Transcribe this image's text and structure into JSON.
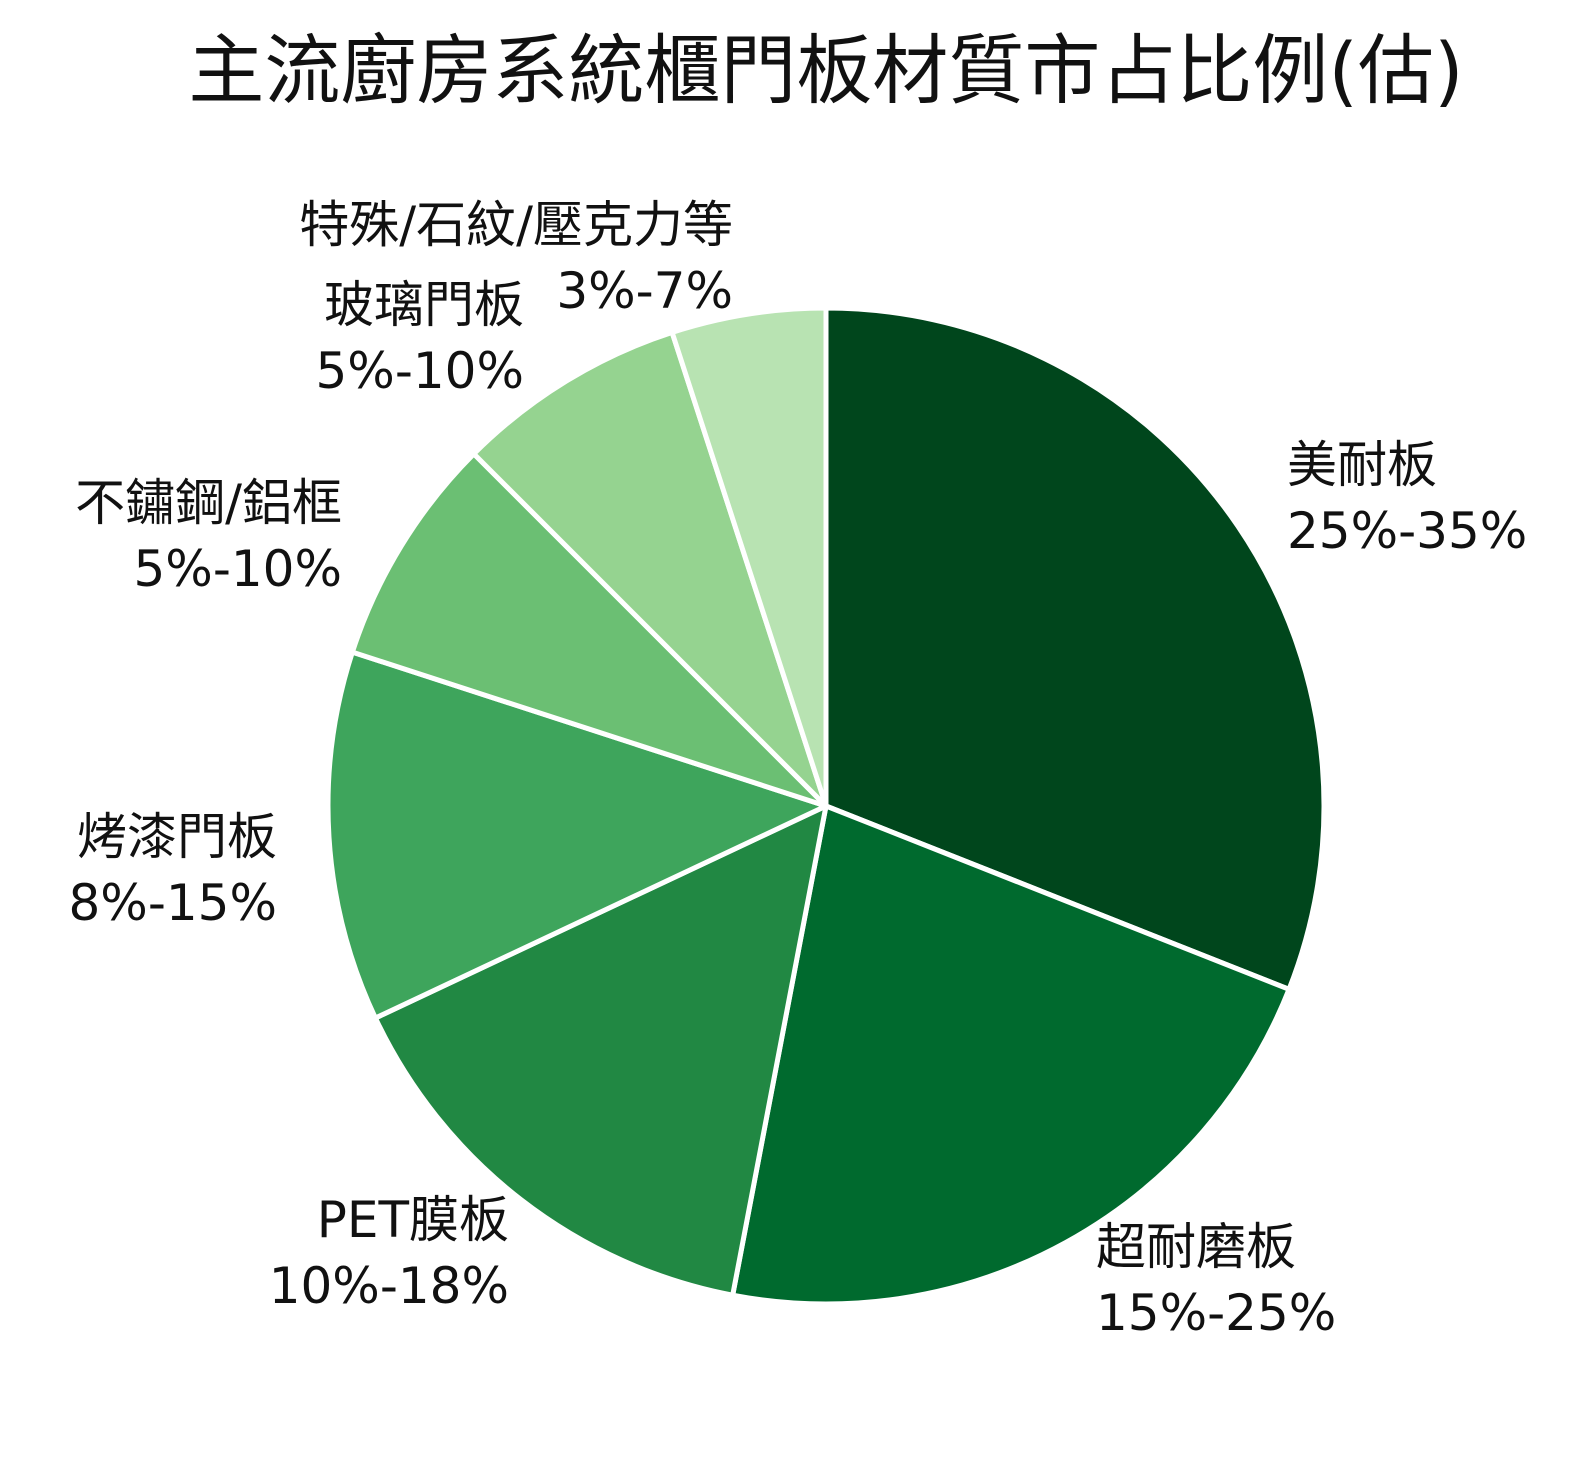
{
  "chart_data": {
    "type": "pie",
    "title": "主流廚房系統櫃門板材質市占比例(估)",
    "slices": [
      {
        "label": "美耐板",
        "range_text": "25%-35%",
        "value": 31,
        "color": "#00461c"
      },
      {
        "label": "超耐磨板",
        "range_text": "15%-25%",
        "value": 22,
        "color": "#006a2e"
      },
      {
        "label": "PET膜板",
        "range_text": "10%-18%",
        "value": 15,
        "color": "#218843"
      },
      {
        "label": "烤漆門板",
        "range_text": "8%-15%",
        "value": 12,
        "color": "#3ea55c"
      },
      {
        "label": "不鏽鋼/鋁框",
        "range_text": "5%-10%",
        "value": 7.5,
        "color": "#6bbf73"
      },
      {
        "label": "玻璃門板",
        "range_text": "5%-10%",
        "value": 7.5,
        "color": "#95d390"
      },
      {
        "label": "特殊/石紋/壓克力等",
        "range_text": "3%-7%",
        "value": 5,
        "color": "#b8e3b2"
      }
    ],
    "start_angle": "12 o'clock",
    "direction": "clockwise"
  }
}
